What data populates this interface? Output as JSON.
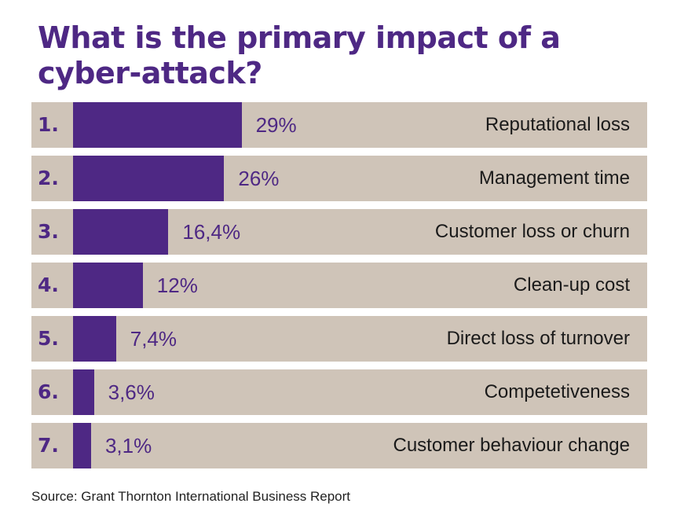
{
  "title": "What is the primary impact of a cyber-attack?",
  "source": "Source: Grant Thornton International Business Report",
  "colors": {
    "bar": "#4e2884",
    "track": "#cfc4b8",
    "title": "#4e2884"
  },
  "chart_data": {
    "type": "bar",
    "orientation": "horizontal",
    "title": "What is the primary impact of a cyber-attack?",
    "xlabel": "",
    "ylabel": "",
    "xlim": [
      0,
      100
    ],
    "grid": false,
    "ranks": [
      "1.",
      "2.",
      "3.",
      "4.",
      "5.",
      "6.",
      "7."
    ],
    "categories": [
      "Reputational loss",
      "Management time",
      "Customer loss or churn",
      "Clean-up cost",
      "Direct loss of turnover",
      "Competetiveness",
      "Customer behaviour change"
    ],
    "values": [
      29,
      26,
      16.4,
      12,
      7.4,
      3.6,
      3.1
    ],
    "value_labels": [
      "29%",
      "26%",
      "16,4%",
      "12%",
      "7,4%",
      "3,6%",
      "3,1%"
    ]
  }
}
